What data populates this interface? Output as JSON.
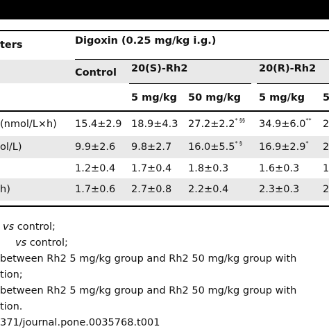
{
  "header": {
    "parameters_label": "ters",
    "group_label": "Digoxin (0.25 mg/kg i.g.)",
    "control": "Control",
    "s_rh2": "20(S)-Rh2",
    "r_rh2": "20(R)-Rh2",
    "dose_5": "5 mg/kg",
    "dose_50": "50 mg/kg",
    "dose_5_r": "5 mg/kg",
    "dose_50_r_fragment": "5"
  },
  "rows": [
    {
      "param": "(nmol/L×h)",
      "control": "15.4±2.9",
      "s5": "18.9±4.3",
      "s50": "27.2±2.2",
      "s50_sup": "* §§",
      "r5": "34.9±6.0",
      "r5_sup": "**",
      "r50": "2"
    },
    {
      "param": "ol/L)",
      "control": "9.9±2.6",
      "s5": "9.8±2.7",
      "s50": "16.0±5.5",
      "s50_sup": "* §",
      "r5": "16.9±2.9",
      "r5_sup": "*",
      "r50": "2"
    },
    {
      "param": "",
      "control": "1.2±0.4",
      "s5": "1.7±0.4",
      "s50": "1.8±0.3",
      "s50_sup": "",
      "r5": "1.6±0.3",
      "r5_sup": "",
      "r50": "1"
    },
    {
      "param": "h)",
      "control": "1.7±0.6",
      "s5": "2.7±0.8",
      "s50": "2.2±0.4",
      "s50_sup": "",
      "r5": "2.3±0.3",
      "r5_sup": "",
      "r50": "2"
    }
  ],
  "footnotes": [
    {
      "italic": "vs",
      "text": " control;"
    },
    {
      "italic": "vs",
      "text": " control;"
    },
    {
      "text": "between Rh2 5 mg/kg group and Rh2 50 mg/kg group with"
    },
    {
      "text": "tion;"
    },
    {
      "text": " between Rh2 5 mg/kg group and Rh2 50 mg/kg group with"
    },
    {
      "text": "tion."
    },
    {
      "text": "371/journal.pone.0035768.t001"
    }
  ]
}
